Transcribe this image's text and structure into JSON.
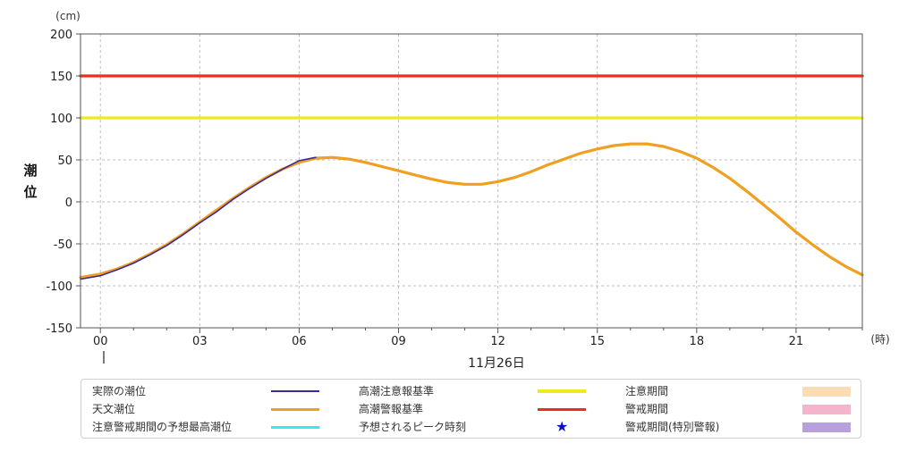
{
  "chart_data": {
    "type": "line",
    "unit_label": "(cm)",
    "ylabel": "潮位",
    "xunit_label": "(時)",
    "date_label": "11月26日",
    "ylim": [
      -150,
      200
    ],
    "xlim": [
      -0.6,
      23.0
    ],
    "y_ticks": [
      "200",
      "150",
      "100",
      "50",
      "0",
      "-50",
      "-100",
      "-150"
    ],
    "y_tick_values": [
      200,
      150,
      100,
      50,
      0,
      -50,
      -100,
      -150
    ],
    "x_ticks": [
      "00",
      "03",
      "06",
      "09",
      "12",
      "15",
      "18",
      "21"
    ],
    "x_tick_values": [
      0,
      3,
      6,
      9,
      12,
      15,
      18,
      21
    ],
    "grid": true,
    "series": [
      {
        "name": "高潮警報基準",
        "color": "#e8301c",
        "x": [
          -0.6,
          23.0
        ],
        "values": [
          150,
          150
        ]
      },
      {
        "name": "高潮注意報基準",
        "color": "#f0ea1c",
        "x": [
          -0.6,
          23.0
        ],
        "values": [
          100,
          100
        ]
      },
      {
        "name": "天文潮位",
        "color": "#f0a020",
        "x": [
          -0.6,
          0,
          0.5,
          1,
          1.5,
          2,
          2.5,
          3,
          3.5,
          4,
          4.5,
          5,
          5.5,
          6,
          6.5,
          7,
          7.5,
          8,
          8.5,
          9,
          9.5,
          10,
          10.5,
          11,
          11.5,
          12,
          12.5,
          13,
          13.5,
          14,
          14.5,
          15,
          15.5,
          16,
          16.5,
          17,
          17.5,
          18,
          18.5,
          19,
          19.5,
          20,
          20.5,
          21,
          21.5,
          22,
          22.5,
          23.0
        ],
        "values": [
          -90,
          -86,
          -80,
          -72,
          -62,
          -51,
          -38,
          -24,
          -10,
          4,
          17,
          29,
          39,
          47,
          52,
          53,
          51,
          47,
          42,
          37,
          32,
          27,
          23,
          21,
          21,
          24,
          29,
          36,
          44,
          51,
          58,
          63,
          67,
          69,
          69,
          66,
          60,
          52,
          41,
          28,
          13,
          -3,
          -19,
          -36,
          -51,
          -65,
          -77,
          -87
        ]
      },
      {
        "name": "実際の潮位",
        "color": "#3a2a9c",
        "x": [
          -0.6,
          0,
          0.5,
          1,
          1.5,
          2,
          2.5,
          3,
          3.5,
          4,
          4.5,
          5,
          5.5,
          6,
          6.5
        ],
        "values": [
          -92,
          -88,
          -81,
          -73,
          -63,
          -52,
          -39,
          -25,
          -12,
          3,
          16,
          28,
          39,
          49,
          53
        ]
      }
    ],
    "legend": [
      {
        "label": "実際の潮位",
        "kind": "line",
        "color": "#3a2a9c",
        "thickness": 1.5
      },
      {
        "label": "高潮注意報基準",
        "kind": "line",
        "color": "#f0ea1c",
        "thickness": 4
      },
      {
        "label": "注意期間",
        "kind": "box",
        "color": "#fcdcb4"
      },
      {
        "label": "天文潮位",
        "kind": "line",
        "color": "#f0a020",
        "thickness": 3
      },
      {
        "label": "高潮警報基準",
        "kind": "line",
        "color": "#e8301c",
        "thickness": 3
      },
      {
        "label": "警戒期間",
        "kind": "box",
        "color": "#f4b4cc"
      },
      {
        "label": "注意警戒期間の予想最高潮位",
        "kind": "line",
        "color": "#30ecf0",
        "thickness": 3
      },
      {
        "label": "予想されるピーク時刻",
        "kind": "star",
        "color": "#1010c8"
      },
      {
        "label": "警戒期間(特別警報)",
        "kind": "box",
        "color": "#b8a0dc"
      }
    ]
  }
}
